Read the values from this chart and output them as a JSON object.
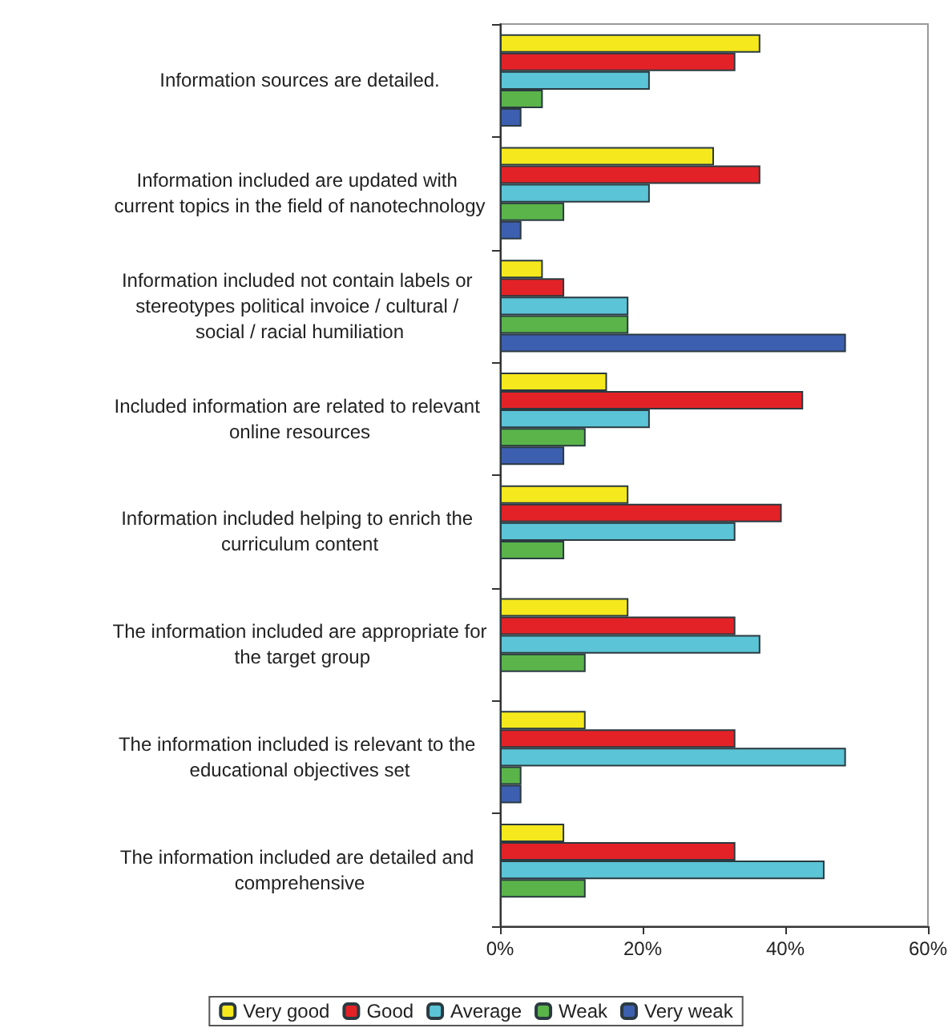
{
  "chart_data": {
    "type": "bar",
    "orientation": "horizontal",
    "categories": [
      "Information sources are detailed.",
      "Information included are updated with current topics in the field of nanotechnology",
      "Information included not contain labels or stereotypes political invoice / cultural / social / racial humiliation",
      "Included information are related to relevant online resources",
      "Information included helping to enrich the curriculum content",
      "The information included are appropriate for the target group",
      "The information included is relevant to the educational objectives set",
      "The information included are detailed and comprehensive"
    ],
    "series": [
      {
        "name": "Very good",
        "color": "#f5e81c",
        "values": [
          36.5,
          30,
          6,
          15,
          18,
          18,
          12,
          9
        ]
      },
      {
        "name": "Good",
        "color": "#e32227",
        "values": [
          33,
          36.5,
          9,
          42.5,
          39.5,
          33,
          33,
          33
        ]
      },
      {
        "name": "Average",
        "color": "#5bc4d6",
        "values": [
          21,
          21,
          18,
          21,
          33,
          36.5,
          48.5,
          45.5
        ]
      },
      {
        "name": "Weak",
        "color": "#5ab44a",
        "values": [
          6,
          9,
          18,
          12,
          9,
          12,
          3,
          12
        ]
      },
      {
        "name": "Very weak",
        "color": "#3d5fb0",
        "values": [
          3,
          3,
          48.5,
          9,
          null,
          null,
          3,
          null
        ]
      }
    ],
    "xlim": [
      0,
      60
    ],
    "xticks": [
      {
        "value": 0,
        "label": "0%"
      },
      {
        "value": 20,
        "label": "20%"
      },
      {
        "value": 40,
        "label": "40%"
      },
      {
        "value": 60,
        "label": "60%"
      }
    ],
    "grid": false,
    "legend": "bottom"
  }
}
